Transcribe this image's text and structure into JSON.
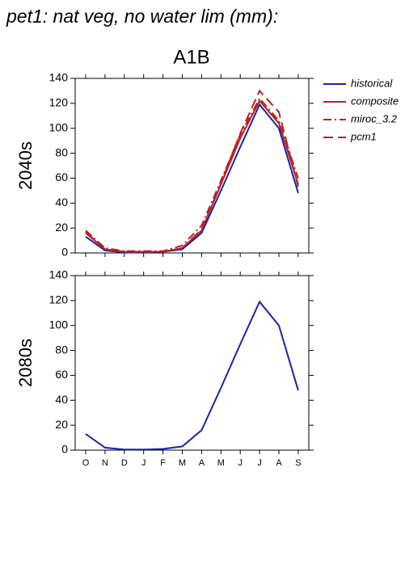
{
  "chart_data": [
    {
      "type": "line",
      "title": "pet1: nat veg, no water lim (mm):",
      "subtitle": "A1B",
      "ylabel": "2040s",
      "ylim": [
        0,
        140
      ],
      "yticks": [
        0,
        20,
        40,
        60,
        80,
        100,
        120,
        140
      ],
      "series": [
        {
          "name": "historical",
          "color": "#1f1fae",
          "dash": "solid",
          "values": [
            13,
            2,
            0.5,
            0.5,
            1,
            3,
            16,
            50,
            85,
            119,
            100,
            48
          ]
        },
        {
          "name": "composite",
          "color": "#b82323",
          "dash": "solid",
          "values": [
            16,
            3,
            1,
            1,
            1,
            4,
            18,
            55,
            92,
            122,
            104,
            55
          ]
        },
        {
          "name": "miroc_3.2",
          "color": "#b82323",
          "dash": "dashdot",
          "values": [
            18,
            4,
            1.5,
            1.5,
            1.5,
            6,
            22,
            58,
            95,
            124,
            106,
            60
          ]
        },
        {
          "name": "pcm1",
          "color": "#b82323",
          "dash": "dashed",
          "values": [
            17,
            3,
            1,
            1,
            1,
            4,
            19,
            56,
            96,
            130,
            113,
            53
          ]
        }
      ]
    },
    {
      "type": "line",
      "ylabel": "2080s",
      "categories": [
        "O",
        "N",
        "D",
        "J",
        "F",
        "M",
        "A",
        "M",
        "J",
        "J",
        "A",
        "S"
      ],
      "ylim": [
        0,
        140
      ],
      "yticks": [
        0,
        20,
        40,
        60,
        80,
        100,
        120,
        140
      ],
      "series": [
        {
          "name": "historical",
          "color": "#1f1fae",
          "dash": "solid",
          "values": [
            13,
            2,
            0.5,
            0.5,
            1,
            3,
            16,
            50,
            85,
            119,
            100,
            48
          ]
        }
      ]
    }
  ]
}
